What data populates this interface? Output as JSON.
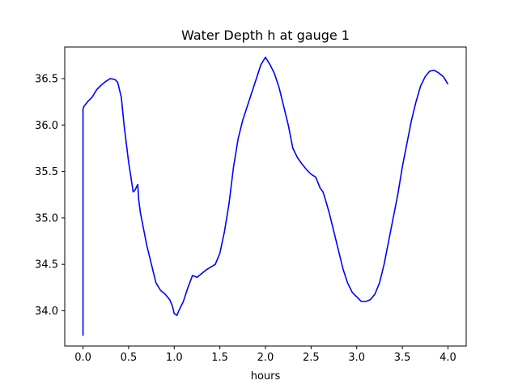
{
  "chart_data": {
    "type": "line",
    "title": "Water Depth h at gauge 1",
    "xlabel": "hours",
    "ylabel": "",
    "xlim": [
      -0.2,
      4.2
    ],
    "ylim": [
      33.62,
      36.84
    ],
    "xticks": [
      0.0,
      0.5,
      1.0,
      1.5,
      2.0,
      2.5,
      3.0,
      3.5,
      4.0
    ],
    "xtick_labels": [
      "0.0",
      "0.5",
      "1.0",
      "1.5",
      "2.0",
      "2.5",
      "3.0",
      "3.5",
      "4.0"
    ],
    "yticks": [
      34.0,
      34.5,
      35.0,
      35.5,
      36.0,
      36.5
    ],
    "ytick_labels": [
      "34.0",
      "34.5",
      "35.0",
      "35.5",
      "36.0",
      "36.5"
    ],
    "grid": false,
    "series": [
      {
        "color": "#0000ff",
        "x": [
          0.0,
          0.0,
          0.01,
          0.05,
          0.1,
          0.15,
          0.2,
          0.25,
          0.3,
          0.35,
          0.38,
          0.42,
          0.45,
          0.5,
          0.55,
          0.57,
          0.6,
          0.61,
          0.63,
          0.65,
          0.7,
          0.75,
          0.8,
          0.85,
          0.9,
          0.95,
          0.98,
          1.0,
          1.03,
          1.05,
          1.1,
          1.15,
          1.2,
          1.25,
          1.3,
          1.35,
          1.4,
          1.45,
          1.5,
          1.55,
          1.6,
          1.65,
          1.7,
          1.75,
          1.8,
          1.85,
          1.9,
          1.95,
          2.0,
          2.05,
          2.1,
          2.15,
          2.2,
          2.25,
          2.3,
          2.35,
          2.4,
          2.45,
          2.5,
          2.55,
          2.6,
          2.63,
          2.65,
          2.7,
          2.75,
          2.8,
          2.85,
          2.9,
          2.95,
          3.0,
          3.05,
          3.1,
          3.15,
          3.2,
          3.25,
          3.3,
          3.35,
          3.4,
          3.45,
          3.5,
          3.55,
          3.6,
          3.65,
          3.7,
          3.75,
          3.8,
          3.85,
          3.9,
          3.95,
          4.0
        ],
        "y": [
          33.73,
          36.17,
          36.2,
          36.25,
          36.3,
          36.38,
          36.43,
          36.47,
          36.5,
          36.49,
          36.46,
          36.3,
          36.0,
          35.6,
          35.28,
          35.3,
          35.36,
          35.2,
          35.05,
          34.95,
          34.7,
          34.5,
          34.3,
          34.22,
          34.18,
          34.12,
          34.05,
          33.97,
          33.95,
          34.0,
          34.1,
          34.25,
          34.38,
          34.36,
          34.4,
          34.44,
          34.47,
          34.5,
          34.62,
          34.85,
          35.15,
          35.55,
          35.85,
          36.05,
          36.2,
          36.35,
          36.5,
          36.65,
          36.73,
          36.65,
          36.55,
          36.4,
          36.2,
          36.0,
          35.75,
          35.65,
          35.58,
          35.52,
          35.47,
          35.44,
          35.32,
          35.28,
          35.22,
          35.05,
          34.85,
          34.65,
          34.45,
          34.3,
          34.2,
          34.15,
          34.1,
          34.1,
          34.12,
          34.18,
          34.3,
          34.5,
          34.75,
          35.0,
          35.25,
          35.55,
          35.8,
          36.05,
          36.25,
          36.42,
          36.52,
          36.58,
          36.59,
          36.56,
          36.52,
          36.44
        ]
      }
    ]
  }
}
